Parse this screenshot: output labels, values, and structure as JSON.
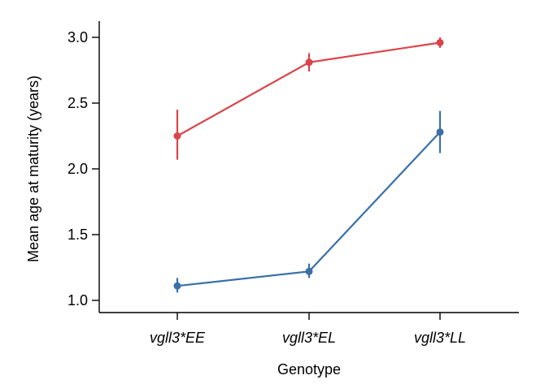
{
  "chart_data": {
    "type": "line",
    "xlabel": "Genotype",
    "ylabel": "Mean age at maturity (years)",
    "categories": [
      "vgll3*EE",
      "vgll3*EL",
      "vgll3*LL"
    ],
    "ylim": [
      0.92,
      3.12
    ],
    "yticks": [
      1.0,
      1.5,
      2.0,
      2.5,
      3.0
    ],
    "ytick_labels": [
      "1.0",
      "1.5",
      "2.0",
      "2.5",
      "3.0"
    ],
    "grid": false,
    "series": [
      {
        "color": "#d9444a",
        "values": [
          2.25,
          2.81,
          2.96
        ],
        "lower": [
          2.07,
          2.74,
          2.92
        ],
        "upper": [
          2.45,
          2.88,
          3.0
        ]
      },
      {
        "color": "#3a70a8",
        "values": [
          1.11,
          1.22,
          2.28
        ],
        "lower": [
          1.06,
          1.17,
          2.12
        ],
        "upper": [
          1.17,
          1.28,
          2.44
        ]
      }
    ]
  }
}
